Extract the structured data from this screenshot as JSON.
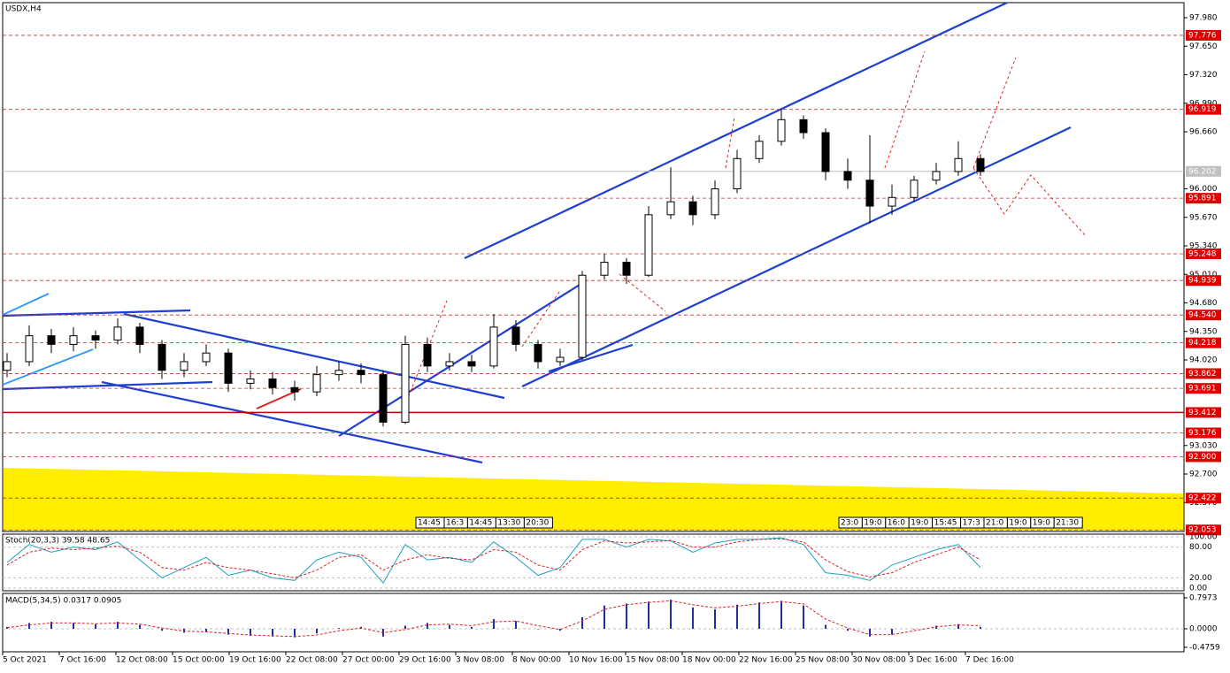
{
  "chart_data": {
    "type": "candlestick",
    "title": "USDX,H4",
    "ylim": [
      92.035,
      98.154
    ],
    "yticks": [
      {
        "value": 97.98,
        "label": "97.980"
      },
      {
        "value": 97.65,
        "label": "97.650"
      },
      {
        "value": 97.32,
        "label": "97.320"
      },
      {
        "value": 96.99,
        "label": "96.990"
      },
      {
        "value": 96.66,
        "label": "96.660"
      },
      {
        "value": 96.0,
        "label": "96.000"
      },
      {
        "value": 95.67,
        "label": "95.670"
      },
      {
        "value": 95.34,
        "label": "95.340"
      },
      {
        "value": 95.01,
        "label": "95.010"
      },
      {
        "value": 94.68,
        "label": "94.680"
      },
      {
        "value": 94.35,
        "label": "94.350"
      },
      {
        "value": 94.02,
        "label": "94.020"
      },
      {
        "value": 93.03,
        "label": "93.030"
      },
      {
        "value": 92.7,
        "label": "92.700"
      },
      {
        "value": 92.37,
        "label": "92.370"
      }
    ],
    "levels": [
      97.776,
      96.919,
      95.891,
      95.248,
      94.939,
      {
        "value": 94.54,
        "label": "94.540"
      },
      94.218,
      93.862,
      93.691,
      93.412,
      93.176,
      {
        "value": 92.9,
        "label": "92.900"
      },
      92.422,
      92.053
    ],
    "solid_level": 93.412,
    "current_price": 96.202,
    "x_labels": [
      "5 Oct 2021",
      "7 Oct 16:00",
      "12 Oct 08:00",
      "15 Oct 00:00",
      "19 Oct 16:00",
      "22 Oct 08:00",
      "27 Oct 00:00",
      "29 Oct 16:00",
      "3 Nov 08:00",
      "8 Nov 00:00",
      "10 Nov 16:00",
      "15 Nov 08:00",
      "18 Nov 00:00",
      "22 Nov 16:00",
      "25 Nov 08:00",
      "30 Nov 08:00",
      "3 Dec 16:00",
      "7 Dec 16:00"
    ],
    "time_labels": [
      [
        "14:45",
        "16:3",
        "14:45",
        "13:30",
        "20:30"
      ],
      [
        "23:0",
        "19:0",
        "16:0",
        "19:0",
        "15:45",
        "17:3",
        "21:0",
        "19:0",
        "19:0",
        "21:30"
      ]
    ],
    "open": [
      93.9,
      94.0,
      94.3,
      94.2,
      94.3,
      94.25,
      94.4,
      94.2,
      93.9,
      94.0,
      94.1,
      93.75,
      93.8,
      93.7,
      93.65,
      93.85,
      93.9,
      93.85,
      93.3,
      94.2,
      93.95,
      94.0,
      93.95,
      94.4,
      94.2,
      94.0,
      94.05,
      95.0,
      95.15,
      95.0,
      95.7,
      95.85,
      95.7,
      96.0,
      96.35,
      96.55,
      96.8,
      96.65,
      96.2,
      96.1,
      95.8,
      95.9,
      96.1,
      96.2,
      96.35
    ],
    "high": [
      94.1,
      94.42,
      94.38,
      94.4,
      94.36,
      94.5,
      94.45,
      94.25,
      94.1,
      94.2,
      94.15,
      93.9,
      93.88,
      93.78,
      93.95,
      94.0,
      93.98,
      93.9,
      94.3,
      94.28,
      94.1,
      94.08,
      94.55,
      94.48,
      94.25,
      94.15,
      95.05,
      95.25,
      95.2,
      95.8,
      96.25,
      95.92,
      96.1,
      96.45,
      96.62,
      96.92,
      96.85,
      96.7,
      96.35,
      96.62,
      96.05,
      96.15,
      96.3,
      96.55,
      96.4
    ],
    "low": [
      93.82,
      93.95,
      94.1,
      94.12,
      94.15,
      94.2,
      94.1,
      93.8,
      93.82,
      93.95,
      93.65,
      93.68,
      93.62,
      93.55,
      93.6,
      93.78,
      93.75,
      93.25,
      93.28,
      93.88,
      93.9,
      93.88,
      93.92,
      94.12,
      93.92,
      93.95,
      94.02,
      94.95,
      94.9,
      94.98,
      95.65,
      95.58,
      95.65,
      95.95,
      96.3,
      96.5,
      96.58,
      96.1,
      96.0,
      95.6,
      95.7,
      95.85,
      96.05,
      96.15,
      96.15
    ],
    "close": [
      94.0,
      94.3,
      94.2,
      94.3,
      94.25,
      94.4,
      94.2,
      93.9,
      94.0,
      94.1,
      93.75,
      93.8,
      93.7,
      93.65,
      93.85,
      93.9,
      93.85,
      93.3,
      94.2,
      93.95,
      94.0,
      93.95,
      94.4,
      94.2,
      94.0,
      94.05,
      95.0,
      95.15,
      95.0,
      95.7,
      95.85,
      95.7,
      96.0,
      96.35,
      96.55,
      96.8,
      96.65,
      96.2,
      96.1,
      95.8,
      95.9,
      96.1,
      96.2,
      96.35,
      96.2
    ],
    "stoch": {
      "title": "Stoch(20,3,3) 39.58 48.65",
      "ylim": [
        0,
        100
      ],
      "yticks": [
        {
          "value": 100,
          "label": "100.00"
        },
        {
          "value": 80,
          "label": "80.00"
        },
        {
          "value": 20,
          "label": "20.00"
        },
        {
          "value": 0,
          "label": "0.00"
        }
      ],
      "main": [
        50,
        85,
        70,
        80,
        75,
        90,
        55,
        20,
        40,
        60,
        25,
        35,
        20,
        15,
        55,
        70,
        60,
        10,
        85,
        55,
        60,
        50,
        90,
        60,
        25,
        40,
        95,
        95,
        80,
        95,
        92,
        70,
        88,
        95,
        95,
        98,
        85,
        30,
        25,
        15,
        45,
        60,
        75,
        85,
        40
      ],
      "signal": [
        45,
        70,
        78,
        75,
        78,
        82,
        70,
        40,
        35,
        50,
        40,
        35,
        28,
        20,
        35,
        60,
        65,
        35,
        55,
        65,
        58,
        55,
        75,
        70,
        45,
        35,
        75,
        92,
        88,
        90,
        93,
        80,
        80,
        90,
        95,
        96,
        90,
        55,
        32,
        22,
        30,
        50,
        65,
        80,
        55
      ]
    },
    "macd": {
      "title": "MACD(5,34,5) 0.0317 0.0905",
      "ylim": [
        -0.592,
        0.888
      ],
      "yticks": [
        0.7973,
        {
          "value": 0,
          "label": "0.0000"
        },
        -0.4759
      ],
      "hist": [
        0.05,
        0.15,
        0.18,
        0.15,
        0.12,
        0.18,
        0.1,
        -0.05,
        -0.1,
        -0.08,
        -0.15,
        -0.18,
        -0.2,
        -0.22,
        -0.12,
        0.02,
        0.05,
        -0.2,
        0.08,
        0.15,
        0.1,
        0.05,
        0.25,
        0.2,
        0.0,
        -0.05,
        0.3,
        0.6,
        0.65,
        0.7,
        0.75,
        0.55,
        0.5,
        0.62,
        0.68,
        0.72,
        0.6,
        0.1,
        -0.05,
        -0.2,
        -0.15,
        0.0,
        0.08,
        0.12,
        0.05
      ],
      "signal": [
        0.03,
        0.1,
        0.15,
        0.15,
        0.13,
        0.15,
        0.12,
        0.02,
        -0.06,
        -0.08,
        -0.12,
        -0.16,
        -0.18,
        -0.2,
        -0.16,
        -0.05,
        0.02,
        -0.1,
        -0.02,
        0.1,
        0.12,
        0.08,
        0.18,
        0.2,
        0.08,
        -0.02,
        0.2,
        0.5,
        0.62,
        0.68,
        0.72,
        0.62,
        0.54,
        0.58,
        0.65,
        0.7,
        0.64,
        0.25,
        0.02,
        -0.15,
        -0.15,
        -0.05,
        0.05,
        0.1,
        0.08
      ]
    }
  }
}
